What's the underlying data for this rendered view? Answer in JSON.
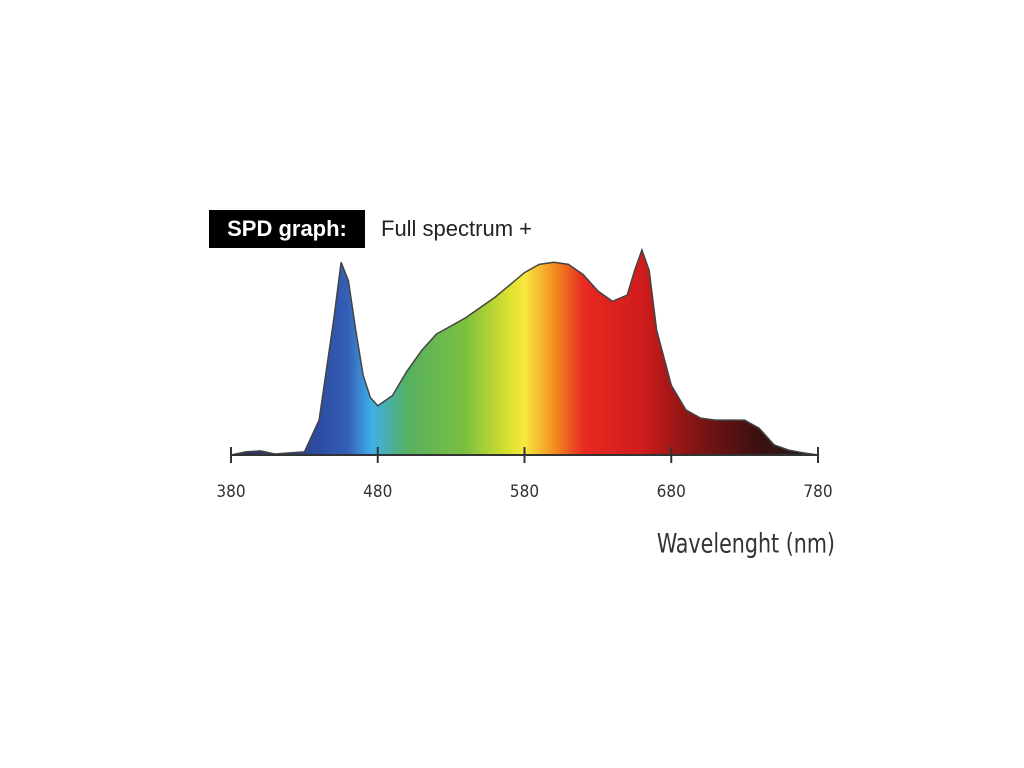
{
  "chart_data": {
    "type": "area",
    "title": "SPD graph:",
    "subtitle": "Full spectrum +",
    "x_label": "Wavelenght (nm)",
    "x": [
      380,
      390,
      400,
      410,
      420,
      430,
      440,
      450,
      455,
      460,
      465,
      470,
      475,
      480,
      490,
      500,
      510,
      520,
      530,
      540,
      550,
      560,
      570,
      580,
      590,
      600,
      610,
      620,
      630,
      640,
      650,
      655,
      660,
      665,
      670,
      680,
      690,
      700,
      710,
      720,
      730,
      740,
      750,
      760,
      770,
      780
    ],
    "values": [
      0,
      1.5,
      2,
      0.5,
      1,
      1.5,
      17,
      66,
      94,
      85,
      61,
      39,
      28,
      24,
      29,
      41,
      51,
      59,
      63,
      67,
      72,
      77,
      83,
      89,
      93,
      94,
      93,
      88,
      80,
      75,
      78,
      90,
      100,
      90,
      61,
      34,
      22,
      18,
      17,
      17,
      17,
      13,
      5,
      2.4,
      1,
      0
    ],
    "xlim": [
      380,
      780
    ],
    "xticks": [
      380,
      480,
      580,
      680,
      780
    ]
  }
}
